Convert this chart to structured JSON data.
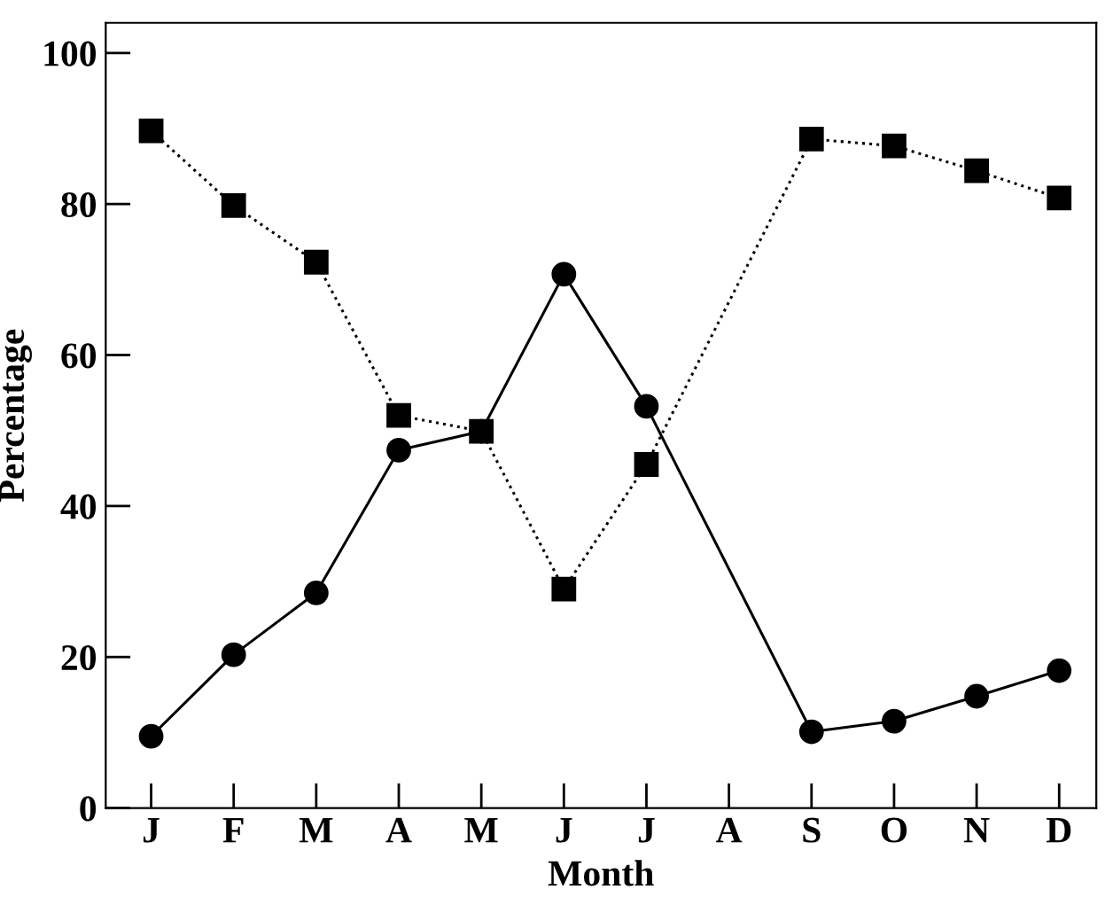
{
  "chart_data": {
    "type": "line",
    "xlabel": "Month",
    "ylabel": "Percentage",
    "categories": [
      "J",
      "F",
      "M",
      "A",
      "M",
      "J",
      "J",
      "A",
      "S",
      "O",
      "N",
      "D"
    ],
    "series": [
      {
        "color": "#000000",
        "marker": "square",
        "line_style": "dotted",
        "values": [
          89.7,
          79.8,
          72.3,
          52.0,
          49.9,
          29.0,
          45.5,
          null,
          88.6,
          87.7,
          84.4,
          80.8
        ]
      },
      {
        "color": "#000000",
        "marker": "circle",
        "line_style": "solid",
        "values": [
          9.5,
          20.3,
          28.5,
          47.4,
          49.9,
          70.7,
          53.2,
          null,
          10.1,
          11.5,
          14.8,
          18.2
        ]
      }
    ],
    "ylim": [
      0,
      104
    ],
    "yticks": [
      0,
      20,
      40,
      60,
      80,
      100
    ],
    "grid": false,
    "legend": false
  }
}
